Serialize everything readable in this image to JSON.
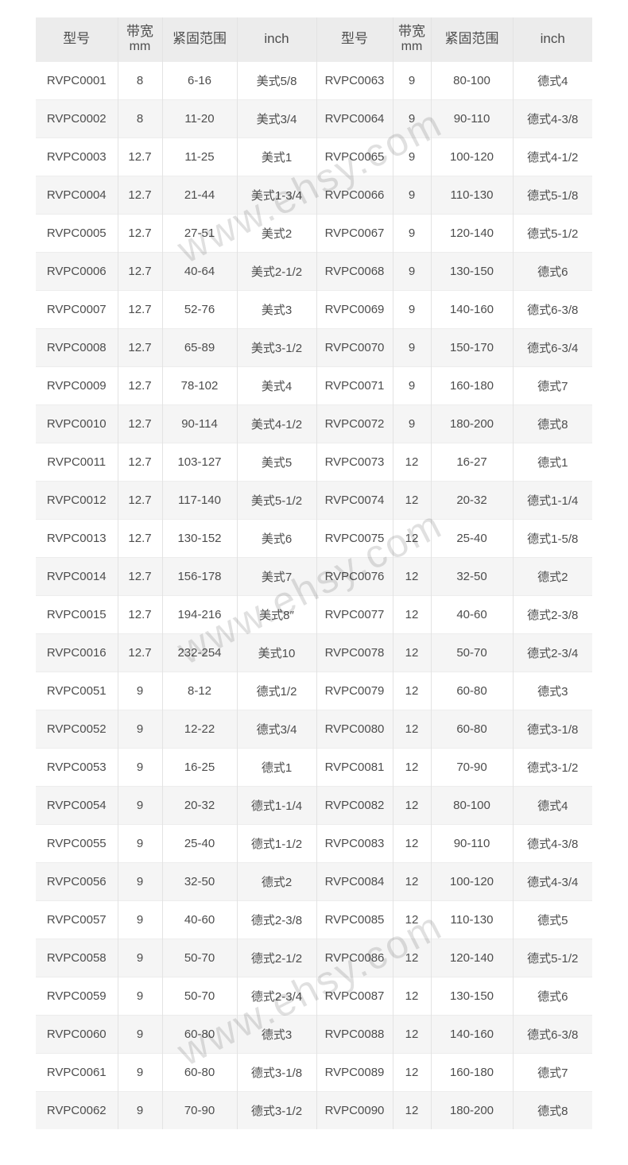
{
  "colors": {
    "header_bg": "#ececec",
    "stripe_bg": "#f5f5f5",
    "border_v": "#e3e3e3",
    "border_h": "#ededed",
    "text": "#4d4d4d",
    "watermark": "rgba(0,0,0,0.12)"
  },
  "watermarks": {
    "first": "www.ehsy.com",
    "second": "www.ehsy.com",
    "third": "www.ehsy.com"
  },
  "table": {
    "headers": [
      {
        "title": "型号",
        "sub": ""
      },
      {
        "title": "带宽",
        "sub": "mm"
      },
      {
        "title": "紧固范围",
        "sub": ""
      },
      {
        "title": "inch",
        "sub": ""
      },
      {
        "title": "型号",
        "sub": ""
      },
      {
        "title": "带宽",
        "sub": "mm"
      },
      {
        "title": "紧固范围",
        "sub": ""
      },
      {
        "title": "inch",
        "sub": ""
      }
    ],
    "rows": [
      [
        "RVPC0001",
        "8",
        "6-16",
        "美式5/8",
        "RVPC0063",
        "9",
        "80-100",
        "德式4"
      ],
      [
        "RVPC0002",
        "8",
        "11-20",
        "美式3/4",
        "RVPC0064",
        "9",
        "90-110",
        "德式4-3/8"
      ],
      [
        "RVPC0003",
        "12.7",
        "11-25",
        "美式1",
        "RVPC0065",
        "9",
        "100-120",
        "德式4-1/2"
      ],
      [
        "RVPC0004",
        "12.7",
        "21-44",
        "美式1-3/4",
        "RVPC0066",
        "9",
        "110-130",
        "德式5-1/8"
      ],
      [
        "RVPC0005",
        "12.7",
        "27-51",
        "美式2",
        "RVPC0067",
        "9",
        "120-140",
        "德式5-1/2"
      ],
      [
        "RVPC0006",
        "12.7",
        "40-64",
        "美式2-1/2",
        "RVPC0068",
        "9",
        "130-150",
        "德式6"
      ],
      [
        "RVPC0007",
        "12.7",
        "52-76",
        "美式3",
        "RVPC0069",
        "9",
        "140-160",
        "德式6-3/8"
      ],
      [
        "RVPC0008",
        "12.7",
        "65-89",
        "美式3-1/2",
        "RVPC0070",
        "9",
        "150-170",
        "德式6-3/4"
      ],
      [
        "RVPC0009",
        "12.7",
        "78-102",
        "美式4",
        "RVPC0071",
        "9",
        "160-180",
        "德式7"
      ],
      [
        "RVPC0010",
        "12.7",
        "90-114",
        "美式4-1/2",
        "RVPC0072",
        "9",
        "180-200",
        "德式8"
      ],
      [
        "RVPC0011",
        "12.7",
        "103-127",
        "美式5",
        "RVPC0073",
        "12",
        "16-27",
        "德式1"
      ],
      [
        "RVPC0012",
        "12.7",
        "117-140",
        "美式5-1/2",
        "RVPC0074",
        "12",
        "20-32",
        "德式1-1/4"
      ],
      [
        "RVPC0013",
        "12.7",
        "130-152",
        "美式6",
        "RVPC0075",
        "12",
        "25-40",
        "德式1-5/8"
      ],
      [
        "RVPC0014",
        "12.7",
        "156-178",
        "美式7",
        "RVPC0076",
        "12",
        "32-50",
        "德式2"
      ],
      [
        "RVPC0015",
        "12.7",
        "194-216",
        "美式8″",
        "RVPC0077",
        "12",
        "40-60",
        "德式2-3/8"
      ],
      [
        "RVPC0016",
        "12.7",
        "232-254",
        "美式10",
        "RVPC0078",
        "12",
        "50-70",
        "德式2-3/4"
      ],
      [
        "RVPC0051",
        "9",
        "8-12",
        "德式1/2",
        "RVPC0079",
        "12",
        "60-80",
        "德式3"
      ],
      [
        "RVPC0052",
        "9",
        "12-22",
        "德式3/4",
        "RVPC0080",
        "12",
        "60-80",
        "德式3-1/8"
      ],
      [
        "RVPC0053",
        "9",
        "16-25",
        "德式1",
        "RVPC0081",
        "12",
        "70-90",
        "德式3-1/2"
      ],
      [
        "RVPC0054",
        "9",
        "20-32",
        "德式1-1/4",
        "RVPC0082",
        "12",
        "80-100",
        "德式4"
      ],
      [
        "RVPC0055",
        "9",
        "25-40",
        "德式1-1/2",
        "RVPC0083",
        "12",
        "90-110",
        "德式4-3/8"
      ],
      [
        "RVPC0056",
        "9",
        "32-50",
        "德式2",
        "RVPC0084",
        "12",
        "100-120",
        "德式4-3/4"
      ],
      [
        "RVPC0057",
        "9",
        "40-60",
        "德式2-3/8",
        "RVPC0085",
        "12",
        "110-130",
        "德式5"
      ],
      [
        "RVPC0058",
        "9",
        "50-70",
        "德式2-1/2",
        "RVPC0086",
        "12",
        "120-140",
        "德式5-1/2"
      ],
      [
        "RVPC0059",
        "9",
        "50-70",
        "德式2-3/4",
        "RVPC0087",
        "12",
        "130-150",
        "德式6"
      ],
      [
        "RVPC0060",
        "9",
        "60-80",
        "德式3",
        "RVPC0088",
        "12",
        "140-160",
        "德式6-3/8"
      ],
      [
        "RVPC0061",
        "9",
        "60-80",
        "德式3-1/8",
        "RVPC0089",
        "12",
        "160-180",
        "德式7"
      ],
      [
        "RVPC0062",
        "9",
        "70-90",
        "德式3-1/2",
        "RVPC0090",
        "12",
        "180-200",
        "德式8"
      ]
    ]
  }
}
